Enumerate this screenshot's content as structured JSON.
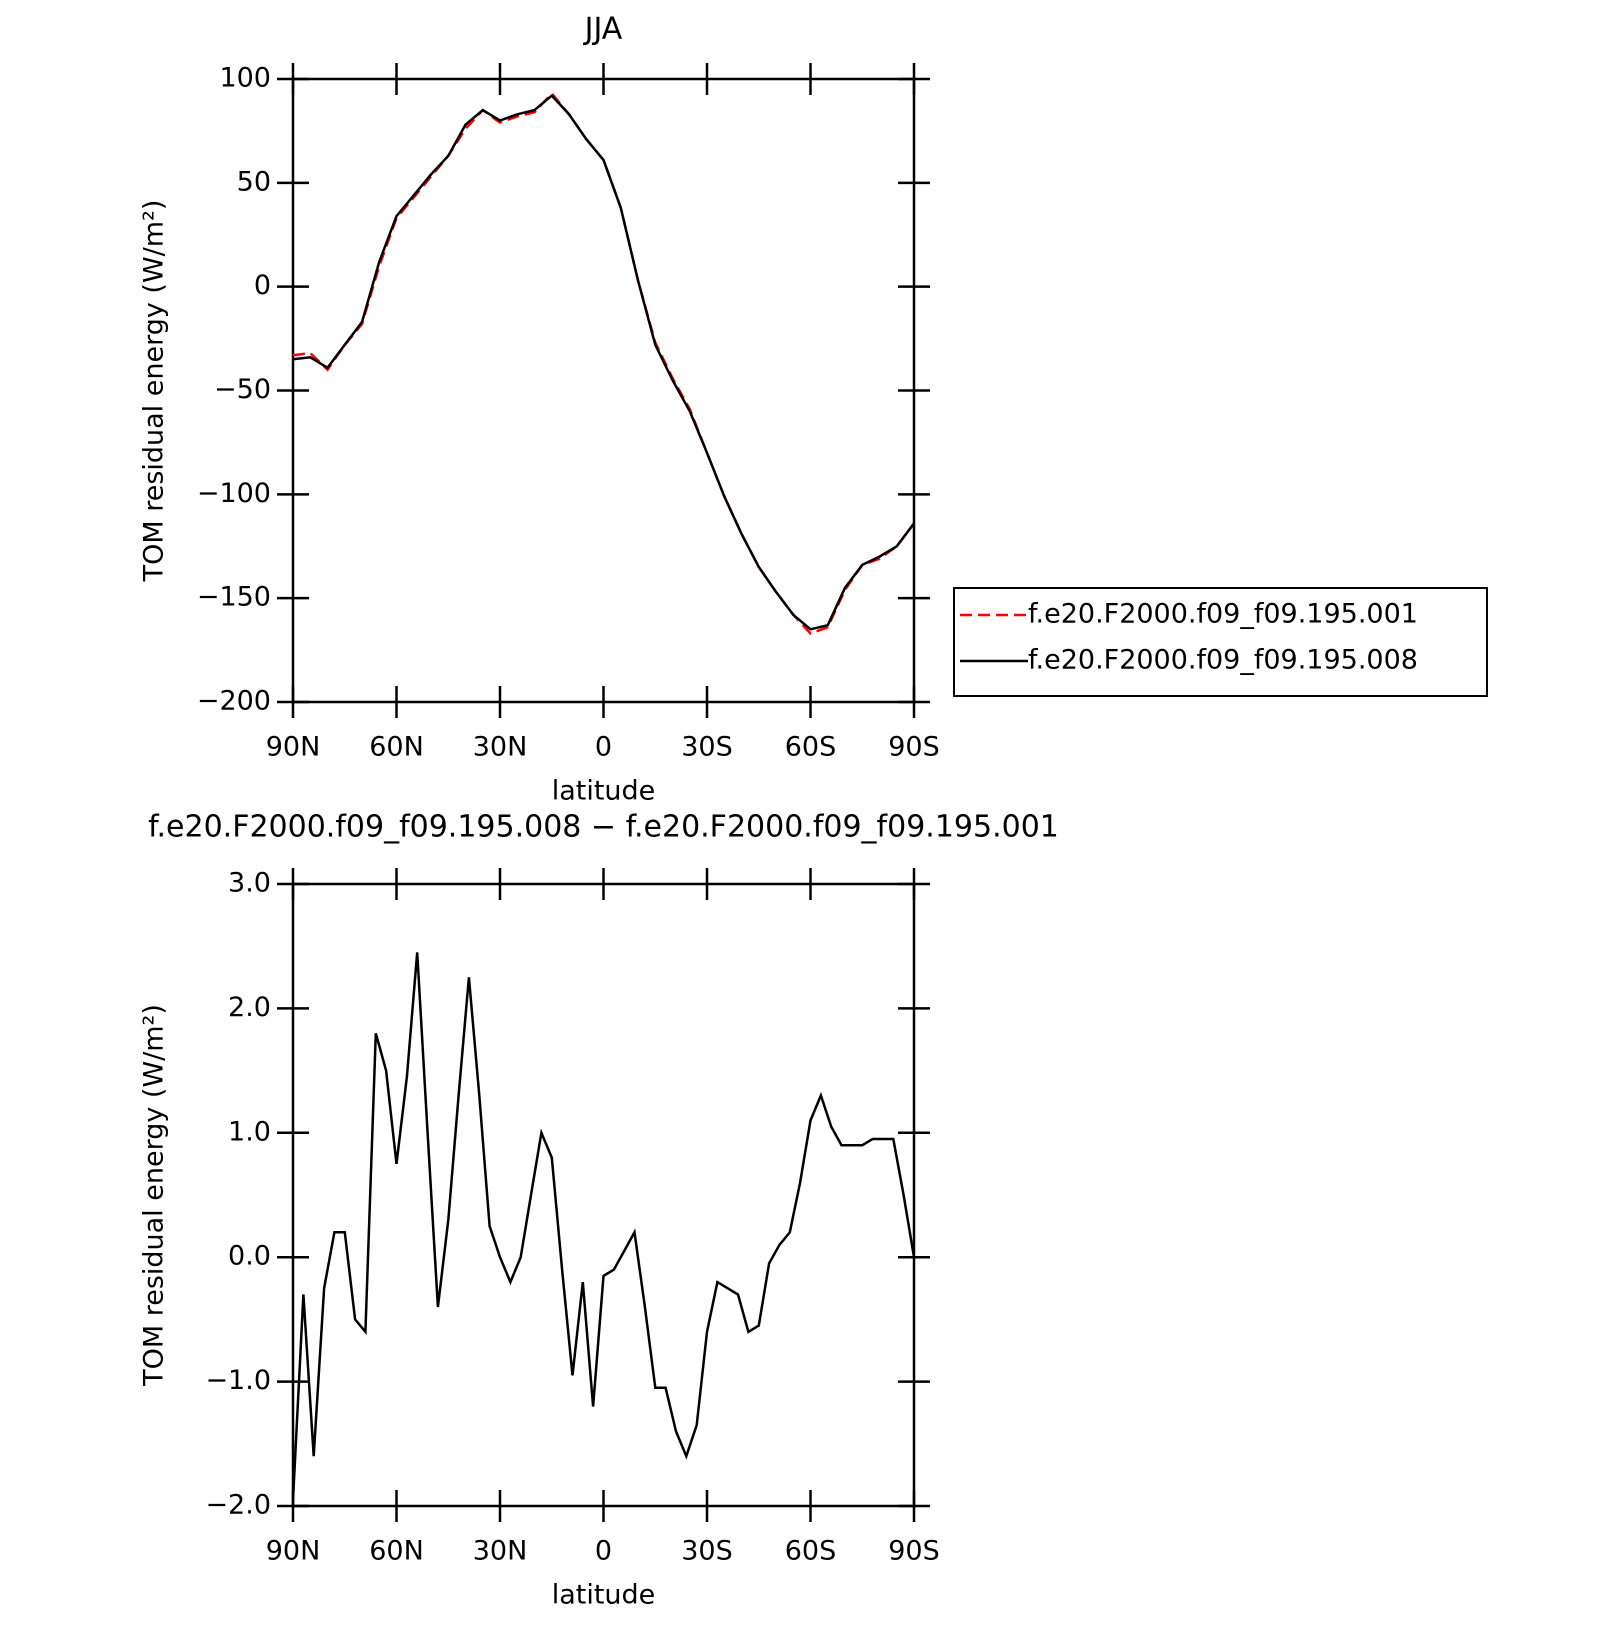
{
  "chart_data": [
    {
      "type": "line",
      "title": "JJA",
      "x_label": "latitude",
      "y_label": "TOM residual energy (W/m²)",
      "x": [
        90,
        85,
        80,
        75,
        70,
        65,
        60,
        55,
        50,
        45,
        40,
        35,
        30,
        25,
        20,
        15,
        10,
        5,
        0,
        -5,
        -10,
        -15,
        -20,
        -25,
        -30,
        -35,
        -40,
        -45,
        -50,
        -55,
        -60,
        -65,
        -70,
        -75,
        -80,
        -85,
        -90
      ],
      "series": [
        {
          "name": "f.e20.F2000.f09_f09.195.001",
          "color": "#ff0000",
          "dashed": true,
          "values": [
            -33,
            -32,
            -40,
            -28,
            -18,
            10,
            33,
            43,
            53,
            63,
            76,
            85,
            79,
            82,
            84,
            93,
            83,
            71,
            61,
            38,
            3,
            -27,
            -44,
            -59,
            -80,
            -101,
            -119,
            -135,
            -147,
            -158,
            -167,
            -164,
            -146,
            -134,
            -131,
            -125,
            -114
          ]
        },
        {
          "name": "f.e20.F2000.f09_f09.195.008",
          "color": "#000000",
          "dashed": false,
          "values": [
            -35,
            -34,
            -39,
            -28,
            -17,
            12,
            34,
            44,
            54,
            63,
            78,
            85,
            80,
            83,
            85,
            92,
            83,
            71,
            61,
            38,
            3,
            -28,
            -45,
            -60,
            -80,
            -101,
            -119,
            -135,
            -147,
            -158,
            -165,
            -163,
            -145,
            -134,
            -130,
            -125,
            -114
          ]
        }
      ],
      "xlim": [
        90,
        -90
      ],
      "xticks": [
        {
          "value": 90,
          "label": "90N"
        },
        {
          "value": 60,
          "label": "60N"
        },
        {
          "value": 30,
          "label": "30N"
        },
        0,
        {
          "value": -30,
          "label": "30S"
        },
        {
          "value": -60,
          "label": "60S"
        },
        {
          "value": -90,
          "label": "90S"
        }
      ],
      "ylim": [
        -200,
        100
      ],
      "yticks": [
        100,
        50,
        0,
        {
          "value": -50,
          "label": "−50"
        },
        {
          "value": -100,
          "label": "−100"
        },
        {
          "value": -150,
          "label": "−150"
        },
        {
          "value": -200,
          "label": "−200"
        }
      ],
      "legend": "right"
    },
    {
      "type": "line",
      "title": "f.e20.F2000.f09_f09.195.008 − f.e20.F2000.f09_f09.195.001",
      "x_label": "latitude",
      "y_label": "TOM residual energy (W/m²)",
      "x": [
        90,
        87,
        84,
        81,
        78,
        75,
        72,
        69,
        66,
        63,
        60,
        57,
        54,
        51,
        48,
        45,
        42,
        39,
        36,
        33,
        30,
        27,
        24,
        21,
        18,
        15,
        12,
        9,
        6,
        3,
        0,
        -3,
        -6,
        -9,
        -12,
        -15,
        -18,
        -21,
        -24,
        -27,
        -30,
        -33,
        -36,
        -39,
        -42,
        -45,
        -48,
        -51,
        -54,
        -57,
        -60,
        -63,
        -66,
        -69,
        -72,
        -75,
        -78,
        -81,
        -84,
        -87,
        -90
      ],
      "series": [
        {
          "color": "#000000",
          "dashed": false,
          "values": [
            -1.95,
            -0.3,
            -1.6,
            -0.25,
            0.2,
            0.2,
            -0.5,
            -0.6,
            1.8,
            1.5,
            0.75,
            1.45,
            2.45,
            1.0,
            -0.4,
            0.3,
            1.3,
            2.25,
            1.3,
            0.25,
            0.0,
            -0.2,
            0.0,
            0.5,
            1.0,
            0.8,
            -0.1,
            -0.95,
            -0.2,
            -1.2,
            -0.15,
            -0.1,
            0.05,
            0.2,
            -0.4,
            -1.05,
            -1.05,
            -1.4,
            -1.6,
            -1.35,
            -0.6,
            -0.2,
            -0.25,
            -0.3,
            -0.6,
            -0.55,
            -0.05,
            0.1,
            0.2,
            0.6,
            1.1,
            1.3,
            1.05,
            0.9,
            0.9,
            0.9,
            0.95,
            0.95,
            0.95,
            0.5,
            0.0
          ]
        }
      ],
      "xlim": [
        90,
        -90
      ],
      "xticks": [
        {
          "value": 90,
          "label": "90N"
        },
        {
          "value": 60,
          "label": "60N"
        },
        {
          "value": 30,
          "label": "30N"
        },
        0,
        {
          "value": -30,
          "label": "30S"
        },
        {
          "value": -60,
          "label": "60S"
        },
        {
          "value": -90,
          "label": "90S"
        }
      ],
      "ylim": [
        -2,
        3
      ],
      "yticks": [
        {
          "value": 3,
          "label": "3.0"
        },
        {
          "value": 2,
          "label": "2.0"
        },
        {
          "value": 1,
          "label": "1.0"
        },
        {
          "value": 0,
          "label": "0.0"
        },
        {
          "value": -1,
          "label": "−1.0"
        },
        {
          "value": -2,
          "label": "−2.0"
        }
      ]
    }
  ]
}
